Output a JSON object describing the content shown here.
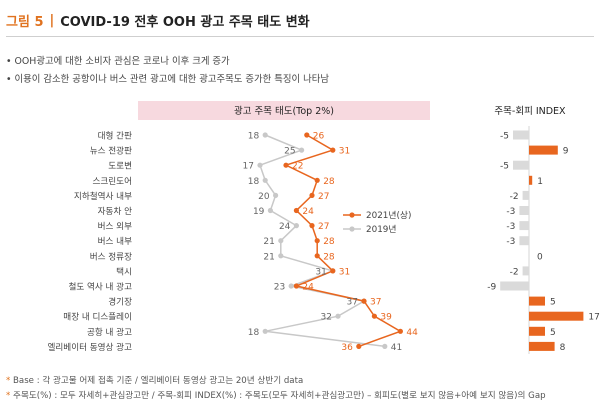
{
  "header": {
    "figure_label": "그림 5",
    "separator": "|",
    "title": "COVID-19 전후 OOH 광고 주목 태도 변화"
  },
  "bullets": [
    "OOH광고에 대한 소비자 관심은 코로나 이후 크게 증가",
    "이용이 감소한 공항이나 버스 관련 광고에 대한 광고주목도 증가한 특징이 나타남"
  ],
  "footnotes": [
    {
      "star": "*",
      "text": "Base : 각 광고물 어제 접촉 기준 / 엘리베이터 동영상 광고는 20년 상반기 data"
    },
    {
      "star": "*",
      "text": "주목도(%) : 모두 자세히+관심광고만 / 주목-회피 INDEX(%) : 주목도(모두 자세히+관심광고만) – 회피도(별로 보지 않음+아예 보지 않음)의 Gap"
    }
  ],
  "chart_data": [
    {
      "type": "line",
      "title": "광고 주목 태도(Top 2%)",
      "categories": [
        "대형 간판",
        "뉴스 전광판",
        "도로변",
        "스크린도어",
        "지하철역사 내부",
        "자동차 안",
        "버스 외부",
        "버스 내부",
        "버스 정류장",
        "택시",
        "철도 역사 내 광고",
        "경기장",
        "매장 내 디스플레이",
        "공항 내 광고",
        "엘리베이터 동영상 광고"
      ],
      "series": [
        {
          "name": "2021년(상)",
          "color": "#e8661f",
          "values": [
            26,
            31,
            22,
            28,
            27,
            24,
            27,
            28,
            28,
            31,
            24,
            37,
            39,
            44,
            36
          ]
        },
        {
          "name": "2019년",
          "color": "#c8c8c8",
          "values": [
            18,
            25,
            17,
            18,
            20,
            19,
            24,
            21,
            21,
            31,
            23,
            37,
            32,
            18,
            41
          ]
        }
      ],
      "legend_position": "right",
      "grid": false
    },
    {
      "type": "bar",
      "title": "주목-회피 INDEX",
      "categories": [
        "대형 간판",
        "뉴스 전광판",
        "도로변",
        "스크린도어",
        "지하철역사 내부",
        "자동차 안",
        "버스 외부",
        "버스 내부",
        "버스 정류장",
        "택시",
        "철도 역사 내 광고",
        "경기장",
        "매장 내 디스플레이",
        "공항 내 광고",
        "엘리베이터 동영상 광고"
      ],
      "values": [
        -5,
        9,
        -5,
        1,
        -2,
        -3,
        -3,
        -3,
        0,
        -2,
        -9,
        5,
        17,
        5,
        8
      ],
      "positive_color": "#e8661f",
      "negative_color": "#dadada"
    }
  ]
}
